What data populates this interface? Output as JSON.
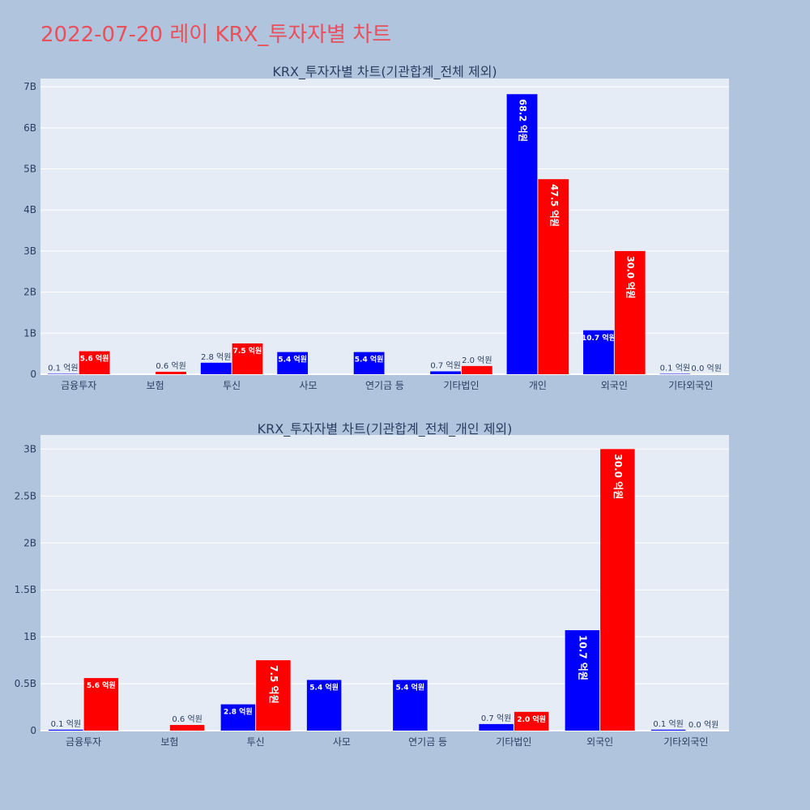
{
  "page_title": "2022-07-20 레이 KRX_투자자별 차트",
  "colors": {
    "background": "#b0c4de",
    "plot_background": "#e5ecf6",
    "series_a": "#0000ff",
    "series_b": "#ff0000",
    "title": "#e8505b",
    "text": "#2a3f5f"
  },
  "chart_data": [
    {
      "type": "bar",
      "title": "KRX_투자자별 차트(기관합계_전체 제외)",
      "categories": [
        "금융투자",
        "보험",
        "투신",
        "사모",
        "연기금 등",
        "기타법인",
        "개인",
        "외국인",
        "기타외국인"
      ],
      "series": [
        {
          "color": "#0000ff",
          "values": [
            10000000,
            null,
            280000000,
            540000000,
            540000000,
            70000000,
            6820000000,
            1070000000,
            10000000
          ],
          "labels": [
            "0.1 억원",
            "",
            "2.8 억원",
            "5.4 억원",
            "5.4 억원",
            "0.7 억원",
            "68.2 억원",
            "10.7 억원",
            "0.1 억원"
          ]
        },
        {
          "color": "#ff0000",
          "values": [
            560000000,
            60000000,
            750000000,
            null,
            null,
            200000000,
            4750000000,
            3000000000,
            0
          ],
          "labels": [
            "5.6 억원",
            "0.6 억원",
            "7.5 억원",
            "",
            "",
            "2.0 억원",
            "47.5 억원",
            "30.0 억원",
            "0.0 억원"
          ]
        }
      ],
      "ylim": [
        0,
        7200000000
      ],
      "yticks": [
        0,
        1000000000,
        2000000000,
        3000000000,
        4000000000,
        5000000000,
        6000000000,
        7000000000
      ],
      "ytick_labels": [
        "0",
        "1B",
        "2B",
        "3B",
        "4B",
        "5B",
        "6B",
        "7B"
      ],
      "grid": true,
      "legend": "none"
    },
    {
      "type": "bar",
      "title": "KRX_투자자별 차트(기관합계_전체_개인 제외)",
      "categories": [
        "금융투자",
        "보험",
        "투신",
        "사모",
        "연기금 등",
        "기타법인",
        "외국인",
        "기타외국인"
      ],
      "series": [
        {
          "color": "#0000ff",
          "values": [
            10000000,
            null,
            280000000,
            540000000,
            540000000,
            70000000,
            1070000000,
            10000000
          ],
          "labels": [
            "0.1 억원",
            "",
            "2.8 억원",
            "5.4 억원",
            "5.4 억원",
            "0.7 억원",
            "10.7 억원",
            "0.1 억원"
          ]
        },
        {
          "color": "#ff0000",
          "values": [
            560000000,
            60000000,
            750000000,
            null,
            null,
            200000000,
            3000000000,
            0
          ],
          "labels": [
            "5.6 억원",
            "0.6 억원",
            "7.5 억원",
            "",
            "",
            "2.0 억원",
            "30.0 억원",
            "0.0 억원"
          ]
        }
      ],
      "ylim": [
        0,
        3150000000
      ],
      "yticks": [
        0,
        500000000,
        1000000000,
        1500000000,
        2000000000,
        2500000000,
        3000000000
      ],
      "ytick_labels": [
        "0",
        "0.5B",
        "1B",
        "1.5B",
        "2B",
        "2.5B",
        "3B"
      ],
      "grid": true,
      "legend": "none"
    }
  ]
}
